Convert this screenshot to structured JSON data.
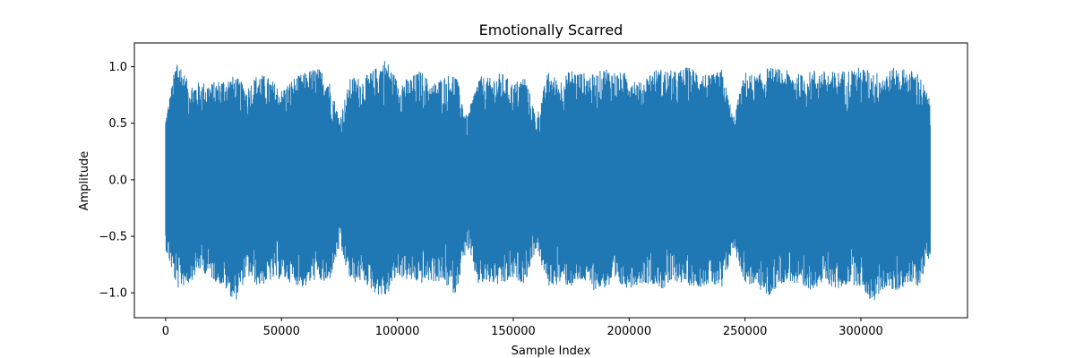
{
  "chart_data": {
    "type": "line",
    "title": "Emotionally Scarred",
    "xlabel": "Sample Index",
    "ylabel": "Amplitude",
    "xlim": [
      -13500,
      346000
    ],
    "ylim": [
      -1.22,
      1.21
    ],
    "xticks": [
      0,
      50000,
      100000,
      150000,
      200000,
      250000,
      300000
    ],
    "xtick_labels": [
      "0",
      "50000",
      "100000",
      "150000",
      "200000",
      "250000",
      "300000"
    ],
    "yticks": [
      -1.0,
      -0.5,
      0.0,
      0.5,
      1.0
    ],
    "ytick_labels": [
      "−1.0",
      "−0.5",
      "0.0",
      "0.5",
      "1.0"
    ],
    "grid": false,
    "legend": "none",
    "color": "#1f77b4",
    "series": [
      {
        "x": [
          0,
          5000,
          10000,
          15000,
          20000,
          25000,
          30000,
          35000,
          40000,
          45000,
          50000,
          55000,
          60000,
          65000,
          70000,
          75000,
          80000,
          85000,
          90000,
          95000,
          100000,
          105000,
          110000,
          115000,
          120000,
          125000,
          130000,
          135000,
          140000,
          145000,
          150000,
          155000,
          160000,
          165000,
          170000,
          175000,
          180000,
          185000,
          190000,
          195000,
          200000,
          205000,
          210000,
          215000,
          220000,
          225000,
          230000,
          235000,
          240000,
          245000,
          250000,
          255000,
          260000,
          265000,
          270000,
          275000,
          280000,
          285000,
          290000,
          295000,
          300000,
          305000,
          310000,
          315000,
          320000,
          325000,
          330000
        ],
        "max": [
          0.55,
          1.1,
          0.85,
          0.87,
          0.86,
          0.9,
          0.92,
          0.82,
          0.95,
          0.9,
          0.8,
          0.9,
          0.95,
          1.0,
          0.93,
          0.55,
          0.92,
          0.9,
          0.98,
          1.08,
          0.88,
          0.9,
          0.97,
          0.85,
          0.92,
          0.95,
          0.55,
          0.92,
          0.9,
          0.95,
          0.85,
          0.93,
          0.55,
          0.96,
          0.88,
          0.98,
          0.95,
          0.93,
          1.0,
          0.95,
          0.95,
          0.86,
          0.98,
          0.98,
          0.96,
          1.0,
          0.98,
          0.92,
          0.98,
          0.55,
          0.96,
          0.92,
          1.0,
          0.98,
          0.96,
          0.93,
          0.98,
          0.96,
          0.96,
          0.98,
          1.0,
          0.96,
          0.95,
          1.0,
          0.98,
          0.95,
          0.7
        ],
        "min": [
          -0.62,
          -0.97,
          -0.92,
          -0.8,
          -0.88,
          -0.95,
          -1.09,
          -0.85,
          -0.95,
          -0.9,
          -0.88,
          -0.92,
          -0.96,
          -0.88,
          -0.95,
          -0.6,
          -0.92,
          -0.9,
          -1.0,
          -1.05,
          -0.85,
          -0.9,
          -0.92,
          -0.9,
          -0.92,
          -1.02,
          -0.6,
          -0.94,
          -0.92,
          -0.95,
          -0.88,
          -0.92,
          -0.6,
          -0.95,
          -0.92,
          -0.95,
          -0.9,
          -0.98,
          -0.96,
          -0.95,
          -0.96,
          -0.92,
          -0.92,
          -0.98,
          -0.9,
          -0.93,
          -0.95,
          -0.92,
          -1.0,
          -0.6,
          -0.92,
          -0.95,
          -1.05,
          -0.92,
          -0.9,
          -1.02,
          -0.95,
          -0.92,
          -0.98,
          -0.92,
          -0.95,
          -1.1,
          -0.96,
          -1.0,
          -0.92,
          -0.95,
          -0.65
        ]
      }
    ]
  }
}
